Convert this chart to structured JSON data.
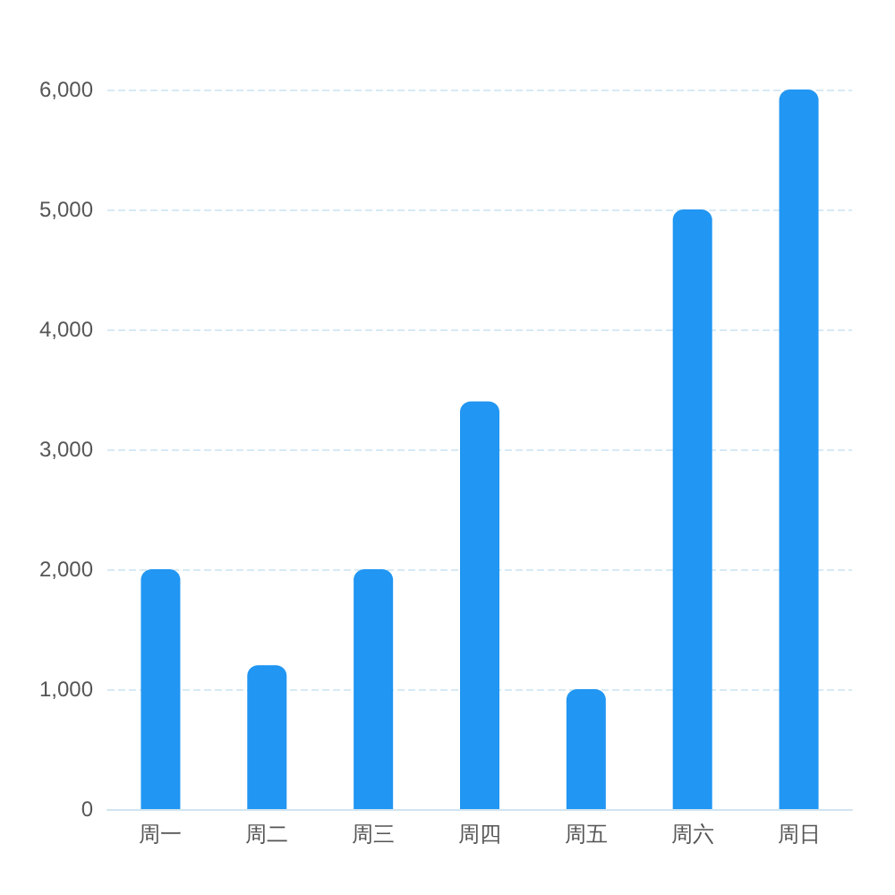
{
  "chart_data": {
    "type": "bar",
    "categories": [
      "周一",
      "周二",
      "周三",
      "周四",
      "周五",
      "周六",
      "周日"
    ],
    "values": [
      2000,
      1200,
      2000,
      3400,
      1000,
      5000,
      6000
    ],
    "color": "#2196f3",
    "ylim": [
      0,
      6000
    ],
    "yticks": [
      0,
      {
        "value": 1000,
        "label": "1,000"
      },
      {
        "value": 2000,
        "label": "2,000"
      },
      {
        "value": 3000,
        "label": "3,000"
      },
      {
        "value": 4000,
        "label": "4,000"
      },
      {
        "value": 5000,
        "label": "5,000"
      },
      {
        "value": 6000,
        "label": "6,000"
      }
    ],
    "grid": "y"
  }
}
